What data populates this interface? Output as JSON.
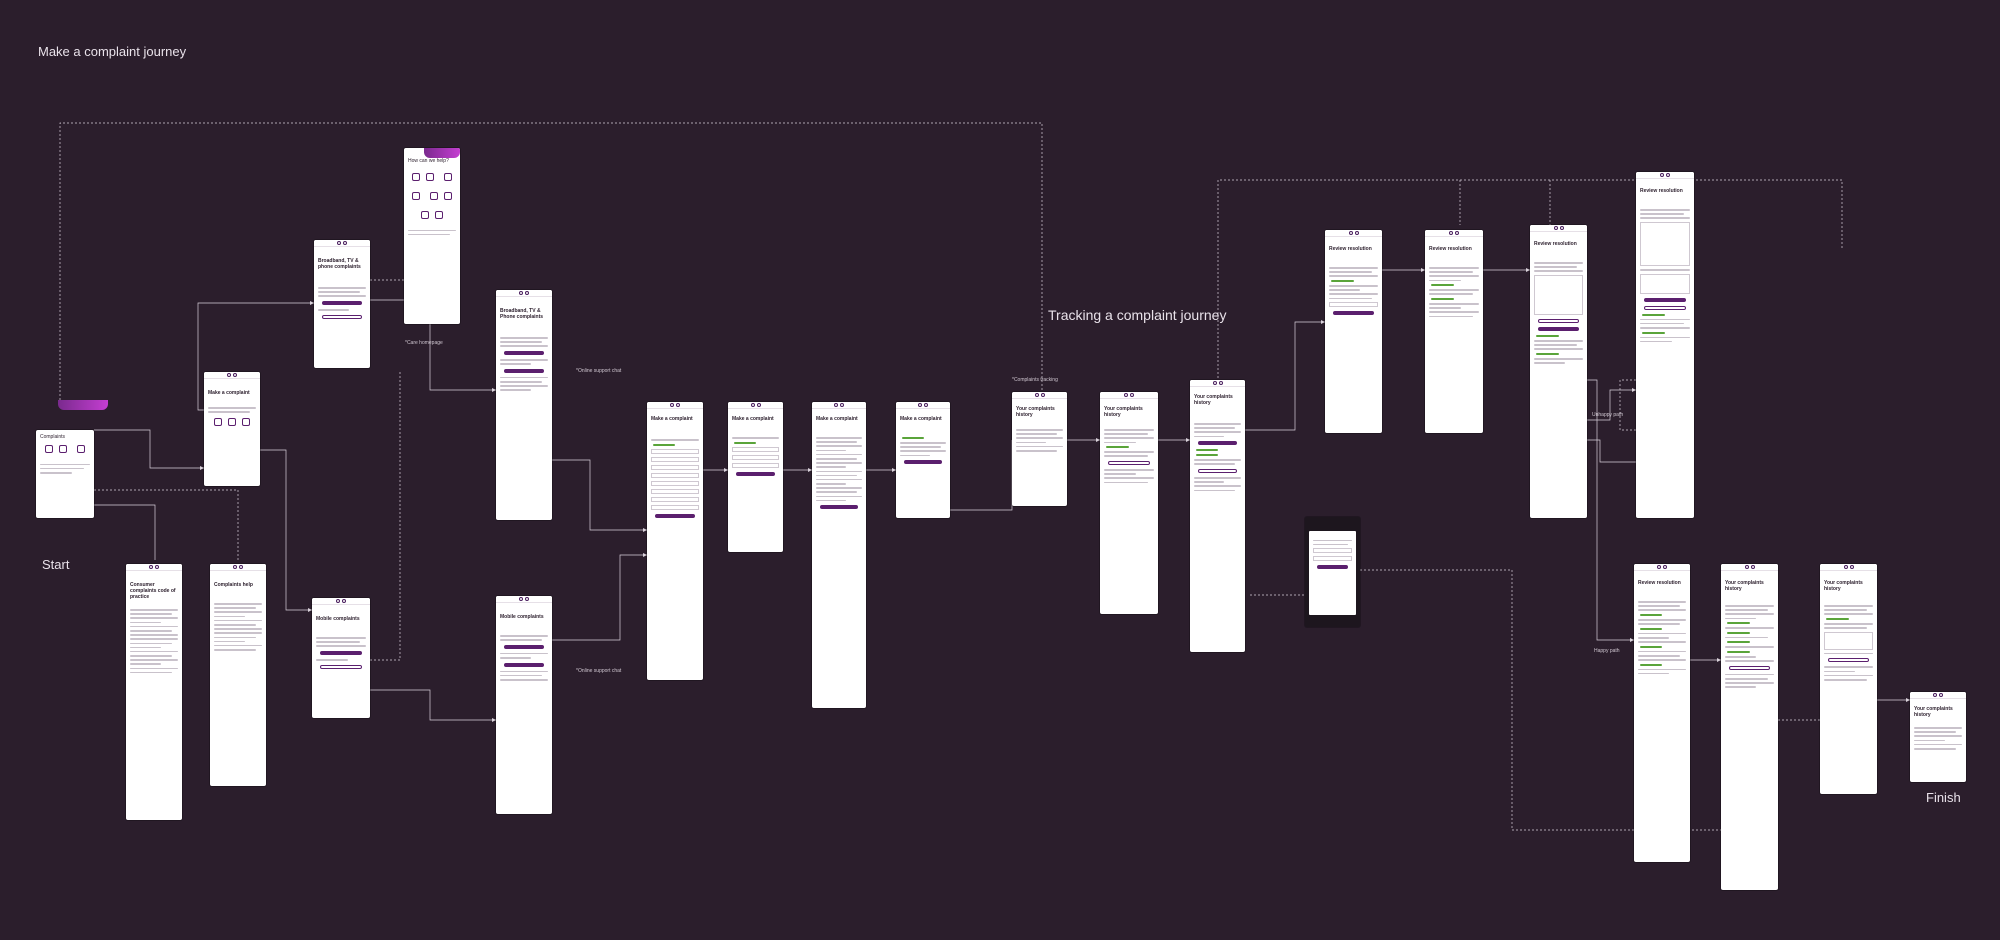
{
  "titles": {
    "make_complaint": "Make a complaint journey",
    "tracking": "Tracking a complaint journey",
    "start": "Start",
    "finish": "Finish"
  },
  "annotations": {
    "care_homepage": "*Care homepage",
    "online_support_chat_1": "*Online support chat",
    "online_support_chat_2": "*Online support chat",
    "complaints_tracking": "*Complaints tracking",
    "unhappy_path": "Unhappy path",
    "happy_path": "Happy path"
  },
  "screens": {
    "complaints_home": {
      "header": "Complaints"
    },
    "help_hub": {
      "header": "How can we help?"
    },
    "codes_of_practice": {
      "title": "Consumer complaints code of practice"
    },
    "complaints_help": {
      "title": "Complaints help"
    },
    "make_a_complaint_1": {
      "title": "Make a complaint"
    },
    "broadband_1": {
      "title": "Broadband, TV & phone complaints"
    },
    "broadband_2": {
      "title": "Broadband, TV & Phone complaints"
    },
    "mobile_1": {
      "title": "Mobile complaints"
    },
    "mobile_2": {
      "title": "Mobile complaints"
    },
    "form_1": {
      "title": "Make a complaint"
    },
    "form_2": {
      "title": "Make a complaint"
    },
    "form_3": {
      "title": "Make a complaint"
    },
    "submitted": {
      "title": "Make a complaint"
    },
    "history_1": {
      "title": "Your complaints history"
    },
    "history_2": {
      "title": "Your complaints history"
    },
    "history_3": {
      "title": "Your complaints history"
    },
    "review_1": {
      "title": "Review resolution"
    },
    "review_2": {
      "title": "Review resolution"
    },
    "review_3": {
      "title": "Review resolution"
    },
    "review_4": {
      "title": "Review resolution"
    },
    "review_happy": {
      "title": "Review resolution"
    },
    "history_happy_1": {
      "title": "Your complaints history"
    },
    "history_happy_2": {
      "title": "Your complaints history"
    },
    "history_final": {
      "title": "Your complaints history"
    }
  },
  "colors": {
    "background": "#2b1e2c",
    "brand_purple": "#5b1f6e",
    "success_green": "#5aa43a",
    "connector": "#d9d1da"
  }
}
